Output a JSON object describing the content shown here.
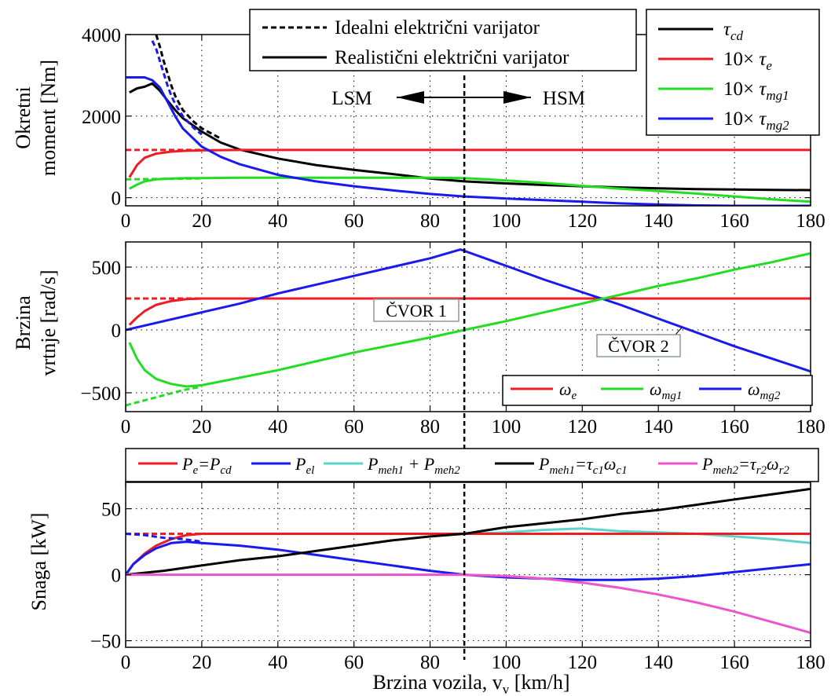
{
  "chart_data": [
    {
      "type": "line",
      "ylabel": "Okretni moment [Nm]",
      "ylabel_lines": [
        "Okretni",
        "moment [Nm]"
      ],
      "xlim": [
        0,
        180
      ],
      "ylim": [
        -200,
        4000
      ],
      "xticks": [
        0,
        20,
        40,
        60,
        80,
        100,
        120,
        140,
        160,
        180
      ],
      "yticks": [
        0,
        2000,
        4000
      ],
      "grid": true,
      "style_legend": [
        {
          "label": "Idealni električni varijator",
          "dash": "dashed"
        },
        {
          "label": "Realistični električni varijator",
          "dash": "solid"
        }
      ],
      "legend": [
        {
          "base": "τ",
          "sub": "cd",
          "prefix": "",
          "color": "#000000"
        },
        {
          "base": "τ",
          "sub": "e",
          "prefix": "10× ",
          "color": "#ee1c24"
        },
        {
          "base": "τ",
          "sub": "mg1",
          "prefix": "10× ",
          "color": "#22dd22"
        },
        {
          "base": "τ",
          "sub": "mg2",
          "prefix": "10× ",
          "color": "#1a1aee"
        }
      ],
      "legend_position": "top-right",
      "zones": {
        "left": "LSM",
        "right": "HSM",
        "boundary_x": 89
      },
      "series": [
        {
          "name": "τcd real",
          "color": "#000000",
          "dash": "solid",
          "x": [
            1,
            3,
            5,
            7,
            9,
            11,
            13,
            15,
            20,
            25,
            30,
            40,
            50,
            60,
            70,
            80,
            89,
            100,
            110,
            120,
            130,
            140,
            150,
            160,
            170,
            180
          ],
          "y": [
            2580,
            2680,
            2720,
            2800,
            2620,
            2380,
            2150,
            1950,
            1620,
            1350,
            1180,
            960,
            800,
            680,
            580,
            470,
            400,
            350,
            310,
            280,
            250,
            230,
            210,
            200,
            190,
            185
          ]
        },
        {
          "name": "τcd ideal",
          "color": "#000000",
          "dash": "dashed",
          "x": [
            8,
            9,
            10,
            11,
            12,
            13,
            15,
            18,
            20,
            25
          ],
          "y": [
            4000,
            3700,
            3350,
            3050,
            2750,
            2500,
            2150,
            1850,
            1700,
            1450
          ]
        },
        {
          "name": "10×τe real",
          "color": "#ee1c24",
          "dash": "solid",
          "x": [
            1,
            3,
            5,
            8,
            12,
            16,
            20,
            30,
            60,
            100,
            140,
            180
          ],
          "y": [
            500,
            800,
            980,
            1080,
            1130,
            1150,
            1160,
            1170,
            1170,
            1170,
            1170,
            1170
          ]
        },
        {
          "name": "10×τe ideal",
          "color": "#ee1c24",
          "dash": "dashed",
          "x": [
            0,
            10,
            20
          ],
          "y": [
            1170,
            1170,
            1170
          ]
        },
        {
          "name": "10×τmg1 real",
          "color": "#22dd22",
          "dash": "solid",
          "x": [
            1,
            3,
            5,
            8,
            12,
            16,
            20,
            30,
            40,
            50,
            60,
            70,
            80,
            89,
            100,
            110,
            120,
            130,
            140,
            150,
            160,
            170,
            180
          ],
          "y": [
            220,
            320,
            400,
            450,
            470,
            480,
            480,
            490,
            490,
            490,
            490,
            490,
            490,
            480,
            420,
            360,
            290,
            220,
            160,
            100,
            30,
            -40,
            -100
          ]
        },
        {
          "name": "10×τmg1 ideal",
          "color": "#22dd22",
          "dash": "dashed",
          "x": [
            0,
            10,
            20
          ],
          "y": [
            450,
            460,
            470
          ]
        },
        {
          "name": "10×τmg2 real",
          "color": "#1a1aee",
          "dash": "solid",
          "x": [
            0,
            1,
            3,
            5,
            7,
            9,
            11,
            13,
            15,
            20,
            25,
            30,
            40,
            50,
            60,
            70,
            80,
            89,
            100,
            110,
            120,
            130,
            140,
            150,
            160,
            170,
            180
          ],
          "y": [
            2950,
            2950,
            2950,
            2950,
            2880,
            2700,
            2350,
            2000,
            1700,
            1250,
            1000,
            820,
            560,
            400,
            280,
            180,
            90,
            30,
            -20,
            -60,
            -100,
            -140,
            -170,
            -190,
            -200,
            -200,
            -200
          ]
        },
        {
          "name": "10×τmg2 ideal",
          "color": "#1a1aee",
          "dash": "dashed",
          "x": [
            7,
            8,
            9,
            10,
            11,
            12,
            13,
            15,
            18,
            20
          ],
          "y": [
            3850,
            3650,
            3350,
            3050,
            2750,
            2500,
            2300,
            2000,
            1700,
            1550
          ]
        }
      ]
    },
    {
      "type": "line",
      "ylabel": "Brzina vrtnje [rad/s]",
      "ylabel_lines": [
        "Brzina",
        "vrtnje [rad/s]"
      ],
      "xlim": [
        0,
        180
      ],
      "ylim": [
        -650,
        700
      ],
      "xticks": [
        0,
        20,
        40,
        60,
        80,
        100,
        120,
        140,
        160,
        180
      ],
      "yticks": [
        -500,
        0,
        500
      ],
      "grid": true,
      "legend": [
        {
          "base": "ω",
          "sub": "e",
          "color": "#ee1c24"
        },
        {
          "base": "ω",
          "sub": "mg1",
          "color": "#22dd22"
        },
        {
          "base": "ω",
          "sub": "mg2",
          "color": "#1a1aee"
        }
      ],
      "legend_position": "lower-right",
      "annotations": [
        {
          "text": "ČVOR 1",
          "x": 89,
          "y": 0
        },
        {
          "text": "ČVOR 2",
          "x": 125,
          "y": 250
        }
      ],
      "series": [
        {
          "name": "ωe real",
          "color": "#ee1c24",
          "dash": "solid",
          "x": [
            1,
            3,
            5,
            8,
            12,
            16,
            20,
            30,
            60,
            100,
            140,
            180
          ],
          "y": [
            40,
            100,
            150,
            200,
            230,
            245,
            250,
            250,
            250,
            250,
            250,
            250
          ]
        },
        {
          "name": "ωe ideal",
          "color": "#ee1c24",
          "dash": "dashed",
          "x": [
            0,
            10,
            20
          ],
          "y": [
            250,
            250,
            250
          ]
        },
        {
          "name": "ωmg2",
          "color": "#1a1aee",
          "dash": "solid",
          "x": [
            0,
            10,
            20,
            30,
            40,
            50,
            60,
            70,
            80,
            88,
            100,
            110,
            120,
            125,
            130,
            140,
            150,
            160,
            170,
            180
          ],
          "y": [
            0,
            70,
            140,
            210,
            290,
            360,
            430,
            500,
            570,
            640,
            510,
            400,
            300,
            250,
            200,
            90,
            -20,
            -130,
            -230,
            -330
          ]
        },
        {
          "name": "ωmg1 real",
          "color": "#22dd22",
          "dash": "solid",
          "x": [
            1,
            3,
            5,
            8,
            12,
            16,
            20,
            30,
            40,
            50,
            60,
            70,
            80,
            89,
            100,
            110,
            120,
            130,
            140,
            150,
            160,
            170,
            180
          ],
          "y": [
            -100,
            -230,
            -320,
            -390,
            -430,
            -450,
            -440,
            -380,
            -320,
            -250,
            -180,
            -120,
            -60,
            0,
            70,
            140,
            210,
            280,
            350,
            410,
            480,
            540,
            610
          ]
        },
        {
          "name": "ωmg1 ideal",
          "color": "#22dd22",
          "dash": "dashed",
          "x": [
            0,
            5,
            10,
            15,
            20
          ],
          "y": [
            -600,
            -560,
            -520,
            -480,
            -450
          ]
        }
      ]
    },
    {
      "type": "line",
      "ylabel": "Snaga [kW]",
      "xlabel": "Brzina vozila, v",
      "xlabel_sub": "v",
      "xlabel_unit": " [km/h]",
      "xlim": [
        0,
        180
      ],
      "ylim": [
        -55,
        70
      ],
      "xticks": [
        0,
        20,
        40,
        60,
        80,
        100,
        120,
        140,
        160,
        180
      ],
      "yticks": [
        -50,
        0,
        50
      ],
      "grid": true,
      "legend_position": "top",
      "legend": [
        {
          "parts": [
            [
              "P",
              "e"
            ],
            [
              "=P",
              "cd"
            ]
          ],
          "color": "#ee1c24"
        },
        {
          "parts": [
            [
              "P",
              "el"
            ]
          ],
          "color": "#1a1aee"
        },
        {
          "parts": [
            [
              "P",
              "meh1"
            ],
            [
              " + P",
              "meh2"
            ]
          ],
          "color": "#5fd3c8"
        },
        {
          "parts": [
            [
              "P",
              "meh1"
            ],
            [
              "=τ",
              "c1"
            ],
            [
              "ω",
              "c1"
            ]
          ],
          "color": "#000000"
        },
        {
          "parts": [
            [
              "P",
              "meh2"
            ],
            [
              "=τ",
              "r2"
            ],
            [
              "ω",
              "r2"
            ]
          ],
          "color": "#ee55cc"
        }
      ],
      "series": [
        {
          "name": "Pmeh1+Pmeh2",
          "color": "#5fd3c8",
          "dash": "solid",
          "x": [
            0,
            2,
            5,
            8,
            12,
            16,
            20,
            30,
            60,
            89,
            100,
            110,
            120,
            125,
            130,
            140,
            150,
            160,
            170,
            180
          ],
          "y": [
            0,
            8,
            16,
            22,
            27,
            30,
            31,
            31,
            31,
            31,
            32,
            34,
            35,
            34,
            33,
            32,
            31,
            29,
            27,
            24
          ]
        },
        {
          "name": "Pe=Pcd real",
          "color": "#ee1c24",
          "dash": "solid",
          "x": [
            0,
            2,
            5,
            8,
            12,
            16,
            20,
            30,
            60,
            100,
            140,
            180
          ],
          "y": [
            0,
            8,
            16,
            22,
            27,
            30,
            31,
            31,
            31,
            31,
            31,
            31
          ]
        },
        {
          "name": "Pe=Pcd ideal",
          "color": "#ee1c24",
          "dash": "dashed",
          "x": [
            0,
            10,
            20
          ],
          "y": [
            31,
            31,
            31
          ]
        },
        {
          "name": "Pel real",
          "color": "#1a1aee",
          "dash": "solid",
          "x": [
            0,
            2,
            5,
            8,
            12,
            16,
            20,
            30,
            40,
            50,
            60,
            70,
            80,
            89,
            100,
            110,
            120,
            130,
            140,
            150,
            160,
            170,
            180
          ],
          "y": [
            0,
            8,
            15,
            20,
            24,
            25,
            24,
            22,
            19,
            15,
            11,
            7,
            3,
            0,
            -2,
            -3,
            -4,
            -4,
            -3,
            -1,
            2,
            5,
            8
          ]
        },
        {
          "name": "Pel ideal",
          "color": "#1a1aee",
          "dash": "dashed",
          "x": [
            0,
            5,
            10,
            15,
            20
          ],
          "y": [
            31,
            30,
            28,
            27,
            25
          ]
        },
        {
          "name": "Pmeh1",
          "color": "#000000",
          "dash": "solid",
          "x": [
            0,
            10,
            20,
            30,
            40,
            50,
            60,
            70,
            80,
            89,
            100,
            110,
            120,
            130,
            140,
            150,
            160,
            170,
            180
          ],
          "y": [
            0,
            3,
            7,
            11,
            14,
            18,
            22,
            26,
            29,
            31,
            36,
            39,
            42,
            46,
            49,
            53,
            57,
            61,
            65
          ]
        },
        {
          "name": "Pmeh2",
          "color": "#ee55cc",
          "dash": "solid",
          "x": [
            0,
            20,
            40,
            60,
            80,
            89,
            100,
            110,
            120,
            130,
            140,
            150,
            160,
            170,
            180
          ],
          "y": [
            0,
            0,
            0,
            0,
            0,
            0,
            -1,
            -3,
            -6,
            -10,
            -15,
            -21,
            -28,
            -36,
            -44
          ]
        }
      ]
    }
  ]
}
